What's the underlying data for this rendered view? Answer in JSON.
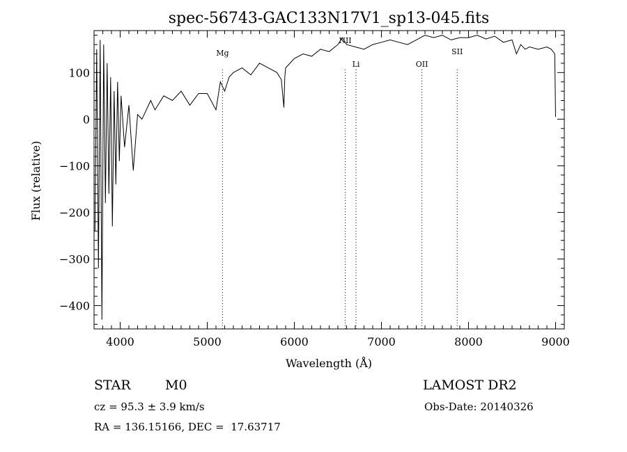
{
  "chart_data": {
    "type": "line",
    "title": "spec-56743-GAC133N17V1_sp13-045.fits",
    "xlabel": "Wavelength (Å)",
    "ylabel": "Flux (relative)",
    "xlim": [
      3700,
      9100
    ],
    "ylim": [
      -450,
      190
    ],
    "x_ticks": [
      4000,
      5000,
      6000,
      7000,
      8000,
      9000
    ],
    "y_ticks": [
      -400,
      -300,
      -200,
      -100,
      0,
      100
    ],
    "y_tick_labels": [
      "−400",
      "−300",
      "−200",
      "−100",
      "0",
      "100"
    ],
    "grid": false,
    "series": [
      {
        "x": [
          3710,
          3730,
          3750,
          3770,
          3790,
          3810,
          3830,
          3850,
          3870,
          3890,
          3910,
          3930,
          3950,
          3970,
          3990,
          4010,
          4050,
          4100,
          4150,
          4200,
          4250,
          4300,
          4350,
          4400,
          4500,
          4600,
          4700,
          4800,
          4900,
          5000,
          5100,
          5150,
          5200,
          5250,
          5300,
          5400,
          5500,
          5600,
          5700,
          5800,
          5850,
          5880,
          5890,
          5900,
          5950,
          6000,
          6100,
          6200,
          6300,
          6400,
          6500,
          6550,
          6600,
          6700,
          6800,
          6900,
          7000,
          7100,
          7200,
          7300,
          7400,
          7500,
          7600,
          7700,
          7800,
          7900,
          8000,
          8100,
          8200,
          8300,
          8400,
          8500,
          8550,
          8600,
          8650,
          8700,
          8800,
          8900,
          8950,
          8990,
          9000
        ],
        "y": [
          -240,
          150,
          -320,
          170,
          -430,
          160,
          -180,
          120,
          -160,
          90,
          -230,
          60,
          -140,
          80,
          -90,
          50,
          -60,
          30,
          -110,
          10,
          0,
          20,
          40,
          20,
          50,
          40,
          60,
          30,
          55,
          55,
          20,
          80,
          60,
          90,
          100,
          110,
          95,
          120,
          110,
          100,
          85,
          25,
          90,
          110,
          120,
          130,
          140,
          135,
          150,
          145,
          160,
          175,
          160,
          155,
          150,
          160,
          165,
          170,
          165,
          160,
          170,
          180,
          175,
          180,
          170,
          175,
          175,
          180,
          172,
          178,
          165,
          170,
          140,
          160,
          150,
          155,
          150,
          155,
          150,
          140,
          5
        ]
      }
    ],
    "lines": [
      {
        "label": "Mg",
        "x": 5175
      },
      {
        "label": "NII",
        "x": 6584
      },
      {
        "label": "Li",
        "x": 6708
      },
      {
        "label": "OII",
        "x": 7465
      },
      {
        "label": "SII",
        "x": 7870
      }
    ]
  },
  "info": {
    "object_type": "STAR",
    "subclass": "M0",
    "survey": "LAMOST DR2",
    "velocity": "cz = 95.3 ± 3.9 km/s",
    "obs_date": "Obs-Date: 20140326",
    "coords": "RA = 136.15166, DEC =  17.63717"
  }
}
